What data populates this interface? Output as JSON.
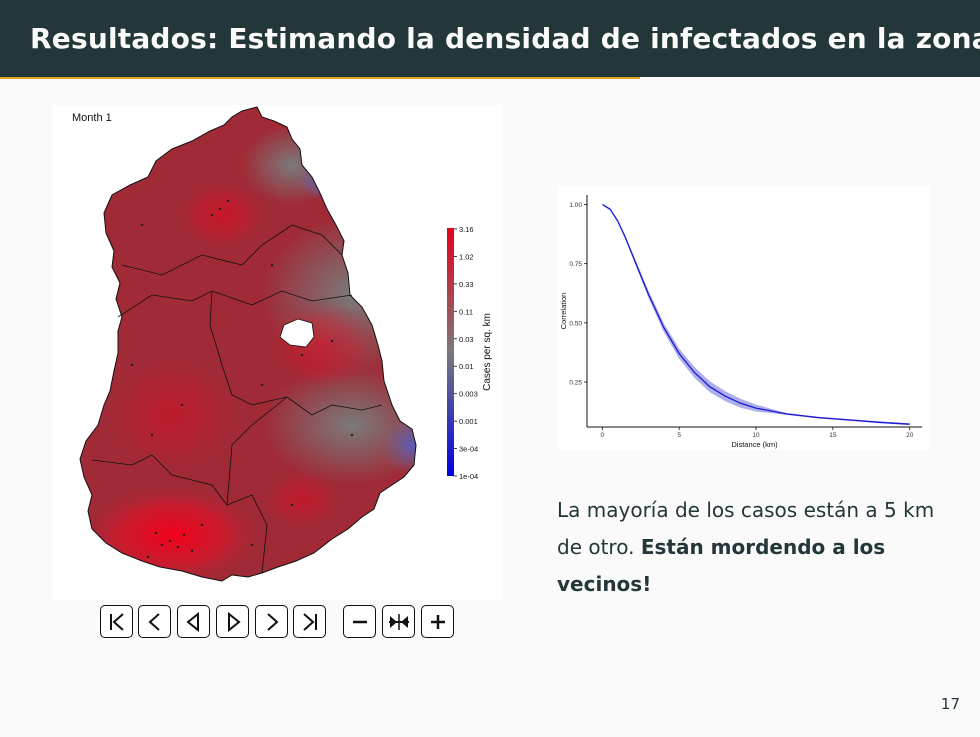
{
  "slide": {
    "title": "Resultados: Estimando la densidad de infectados en la zona",
    "page_number": "17",
    "body_text_plain": "La mayoría de los casos están a 5 km de otro. ",
    "body_text_bold": "Están mordendo a los vecinos!"
  },
  "map": {
    "label": "Month  1",
    "legend_title": "Cases per sq. km",
    "legend_ticks": [
      "3.16",
      "1.02",
      "0.33",
      "0.11",
      "0.03",
      "0.01",
      "0.003",
      "0.001",
      "3e-04",
      "1e-04"
    ],
    "colors": {
      "high": "#e8001c",
      "mid": "#7a7a7a",
      "low": "#0000e6"
    }
  },
  "controls": [
    {
      "name": "first-frame-button",
      "icon": "skip-to-first-icon"
    },
    {
      "name": "previous-frame-button",
      "icon": "chevron-left-icon"
    },
    {
      "name": "play-reverse-button",
      "icon": "triangle-left-icon"
    },
    {
      "name": "play-forward-button",
      "icon": "triangle-right-icon"
    },
    {
      "name": "next-frame-button",
      "icon": "chevron-right-icon"
    },
    {
      "name": "last-frame-button",
      "icon": "skip-to-last-icon"
    },
    {
      "name": "slower-button",
      "icon": "minus-icon"
    },
    {
      "name": "reset-speed-button",
      "icon": "reset-speed-icon"
    },
    {
      "name": "faster-button",
      "icon": "plus-icon"
    }
  ],
  "chart_data": {
    "type": "line",
    "title": "",
    "xlabel": "Distance (km)",
    "ylabel": "Correlation",
    "xlim": [
      -1,
      20.8
    ],
    "ylim": [
      0.06,
      1.04
    ],
    "xticks": [
      "0",
      "5",
      "10",
      "15",
      "20"
    ],
    "yticks": [
      "1.00",
      "0.75",
      "0.50",
      "0.25"
    ],
    "series": [
      {
        "color": "#1a1ad6",
        "x": [
          0,
          0.5,
          1,
          1.5,
          2,
          2.5,
          3,
          3.5,
          4,
          5,
          6,
          7,
          8,
          9,
          10,
          12,
          14,
          16,
          18,
          20
        ],
        "y": [
          1.0,
          0.98,
          0.93,
          0.86,
          0.78,
          0.7,
          0.62,
          0.55,
          0.48,
          0.37,
          0.29,
          0.23,
          0.19,
          0.16,
          0.14,
          0.115,
          0.1,
          0.09,
          0.08,
          0.072
        ]
      }
    ]
  }
}
